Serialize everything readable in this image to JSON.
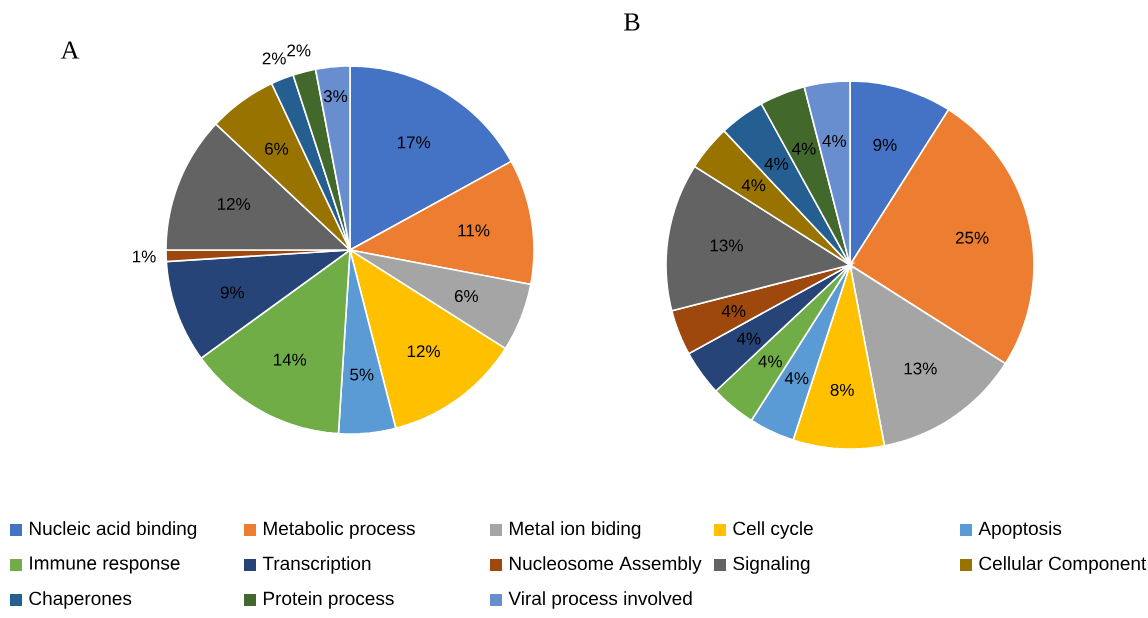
{
  "chart_data": [
    {
      "type": "pie",
      "title": "A",
      "legend": "bottom",
      "categories": [
        "Nucleic acid binding",
        "Metabolic process",
        "Metal ion biding",
        "Cell cycle",
        "Apoptosis",
        "Immune response",
        "Transcription",
        "Nucleosome Assembly",
        "Signaling",
        "Cellular Component",
        "Chaperones",
        "Protein process",
        "Viral process involved"
      ],
      "values": [
        17,
        11,
        6,
        12,
        5,
        14,
        9,
        1,
        12,
        6,
        2,
        2,
        3
      ],
      "value_labels": [
        "17%",
        "11%",
        "6%",
        "12%",
        "5%",
        "14%",
        "9%",
        "1%",
        "12%",
        "6%",
        "2%",
        "2%",
        "3%"
      ],
      "colors": [
        "#4472c4",
        "#ed7d31",
        "#a5a5a5",
        "#ffc000",
        "#5b9bd5",
        "#70ad47",
        "#264478",
        "#9e480e",
        "#636363",
        "#997300",
        "#255e91",
        "#43682b",
        "#698ed0"
      ]
    },
    {
      "type": "pie",
      "title": "B",
      "legend": false,
      "categories": [
        null,
        null,
        null,
        null,
        null,
        null,
        null,
        null,
        null,
        null,
        null,
        null,
        null
      ],
      "values": [
        9,
        25,
        13,
        8,
        4,
        4,
        4,
        4,
        13,
        4,
        4,
        4,
        4
      ],
      "value_labels": [
        "9%",
        "25%",
        "13%",
        "8%",
        "4%",
        "4%",
        "4%",
        "4%",
        "13%",
        "4%",
        "4%",
        "4%",
        "4%"
      ],
      "colors": [
        "#4472c4",
        "#ed7d31",
        "#a5a5a5",
        "#ffc000",
        "#5b9bd5",
        "#70ad47",
        "#264478",
        "#9e480e",
        "#636363",
        "#997300",
        "#255e91",
        "#43682b",
        "#698ed0"
      ]
    }
  ]
}
